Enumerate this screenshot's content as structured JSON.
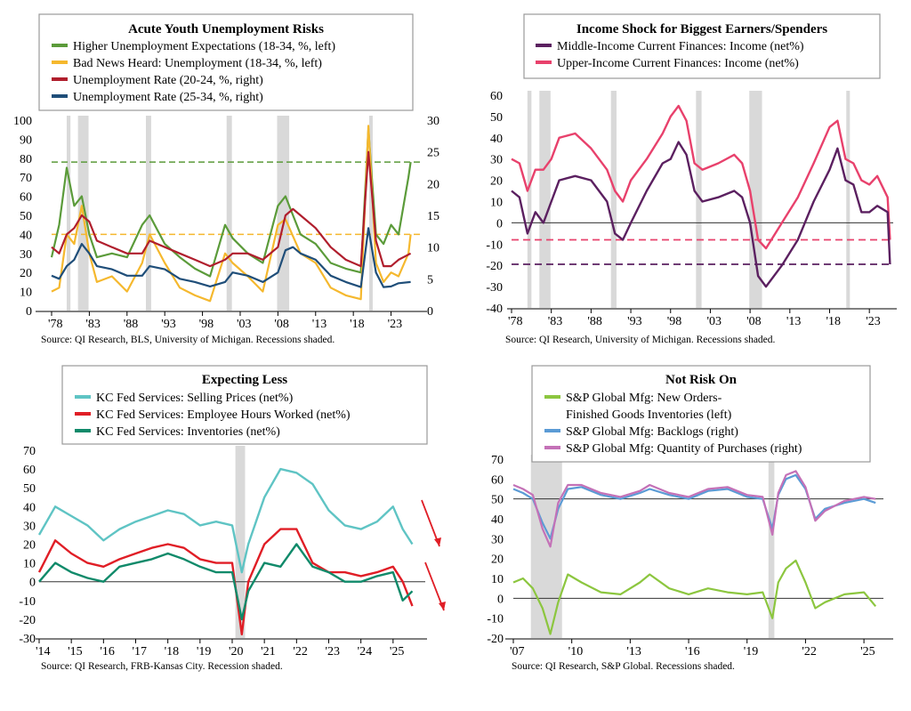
{
  "chart_data": [
    {
      "type": "line",
      "title": "Acute Youth Unemployment Risks",
      "source": "Source: QI Research, BLS, University of Michigan. Recessions shaded.",
      "x_ticks": [
        "'78",
        "'83",
        "'88",
        "'93",
        "'98",
        "'03",
        "'08",
        "'13",
        "'18",
        "'23"
      ],
      "xlim": [
        1978,
        2026
      ],
      "y_left_ticks": [
        0,
        10,
        20,
        30,
        40,
        50,
        60,
        70,
        80,
        90,
        100
      ],
      "y_left_lim": [
        0,
        100
      ],
      "y_right_ticks": [
        0,
        5,
        10,
        15,
        20,
        25,
        30
      ],
      "y_right_lim": [
        0,
        30
      ],
      "recessions": [
        [
          1980.0,
          1980.5
        ],
        [
          1981.5,
          1982.9
        ],
        [
          1990.5,
          1991.2
        ],
        [
          2001.2,
          2001.9
        ],
        [
          2007.9,
          2009.5
        ],
        [
          2020.1,
          2020.4
        ]
      ],
      "reference_lines": [
        {
          "axis": "left",
          "y": 78,
          "color": "#5b9b3a"
        },
        {
          "axis": "left",
          "y": 40,
          "color": "#f5b82e"
        }
      ],
      "series": [
        {
          "name": "Higher Unemployment Expectations (18-34, %, left)",
          "axis": "left",
          "color": "#5b9b3a",
          "x": [
            1978,
            1979,
            1980,
            1981,
            1982,
            1983,
            1984,
            1986,
            1988,
            1990,
            1991,
            1993,
            1995,
            1997,
            1999,
            2001,
            2002,
            2004,
            2006,
            2008,
            2009,
            2011,
            2013,
            2015,
            2017,
            2019,
            2020,
            2021,
            2022,
            2023,
            2024,
            2025.3,
            2025.6
          ],
          "y": [
            28,
            45,
            75,
            55,
            60,
            40,
            28,
            30,
            28,
            45,
            50,
            35,
            28,
            22,
            18,
            45,
            38,
            30,
            25,
            55,
            60,
            40,
            35,
            25,
            22,
            20,
            95,
            40,
            35,
            45,
            40,
            70,
            78
          ]
        },
        {
          "name": "Bad News Heard: Unemployment (18-34, %, left)",
          "axis": "left",
          "color": "#f5b82e",
          "x": [
            1978,
            1979,
            1980,
            1981,
            1982,
            1983,
            1984,
            1986,
            1988,
            1990,
            1991,
            1993,
            1995,
            1997,
            1999,
            2001,
            2002,
            2004,
            2006,
            2008,
            2009,
            2011,
            2013,
            2015,
            2017,
            2019,
            2020,
            2021,
            2022,
            2023,
            2024,
            2025.3,
            2025.6
          ],
          "y": [
            10,
            12,
            40,
            35,
            55,
            30,
            15,
            18,
            10,
            25,
            40,
            25,
            12,
            8,
            5,
            30,
            25,
            18,
            10,
            45,
            48,
            30,
            25,
            12,
            8,
            6,
            97,
            25,
            15,
            20,
            18,
            30,
            40
          ]
        },
        {
          "name": "Unemployment Rate (20-24, %, right)",
          "axis": "right",
          "color": "#b01e2d",
          "x": [
            1978,
            1979,
            1980,
            1981,
            1982,
            1983,
            1984,
            1986,
            1988,
            1990,
            1991,
            1993,
            1995,
            1997,
            1999,
            2001,
            2002,
            2004,
            2006,
            2008,
            2009,
            2010,
            2011,
            2013,
            2015,
            2017,
            2019,
            2020,
            2021,
            2022,
            2023,
            2024,
            2025.6
          ],
          "y": [
            10,
            9,
            12,
            13,
            15,
            14,
            11,
            10,
            9,
            9,
            11,
            10,
            9,
            8,
            7,
            8,
            9,
            9,
            8,
            10,
            15,
            16,
            15,
            13,
            10,
            8,
            7,
            25,
            11,
            7,
            7,
            8,
            9
          ]
        },
        {
          "name": "Unemployment Rate (25-34, %, right)",
          "axis": "right",
          "color": "#1f4e79",
          "x": [
            1978,
            1979,
            1980,
            1981,
            1982,
            1983,
            1984,
            1986,
            1988,
            1990,
            1991,
            1993,
            1995,
            1997,
            1999,
            2001,
            2002,
            2004,
            2006,
            2008,
            2009,
            2010,
            2011,
            2013,
            2015,
            2017,
            2019,
            2020,
            2021,
            2022,
            2023,
            2024,
            2025.6
          ],
          "y": [
            5.5,
            5,
            7,
            8,
            10.5,
            9,
            7,
            6.5,
            5.5,
            5.5,
            7,
            6.5,
            5,
            4.5,
            3.8,
            4.5,
            6,
            5.5,
            4.5,
            6,
            9.5,
            10,
            9,
            8,
            5.5,
            4.5,
            3.7,
            13,
            6,
            3.7,
            3.8,
            4.3,
            4.5
          ]
        }
      ]
    },
    {
      "type": "line",
      "title": "Income Shock for Biggest Earners/Spenders",
      "source": "Source: QI Research, University of Michigan. Recessions shaded.",
      "x_ticks": [
        "'78",
        "'83",
        "'88",
        "'93",
        "'98",
        "'03",
        "'08",
        "'13",
        "'18",
        "'23"
      ],
      "xlim": [
        1978,
        2026
      ],
      "y_ticks": [
        -40,
        -30,
        -20,
        -10,
        0,
        10,
        20,
        30,
        40,
        50,
        60
      ],
      "ylim": [
        -40,
        60
      ],
      "recessions": [
        [
          1980.0,
          1980.5
        ],
        [
          1981.5,
          1982.9
        ],
        [
          1990.5,
          1991.2
        ],
        [
          2001.2,
          2001.9
        ],
        [
          2007.9,
          2009.5
        ],
        [
          2020.1,
          2020.4
        ]
      ],
      "reference_lines": [
        {
          "y": -8,
          "color": "#e8416c"
        },
        {
          "y": -19.5,
          "color": "#5b2060"
        }
      ],
      "series": [
        {
          "name": "Middle-Income Current Finances: Income (net%)",
          "color": "#5b2060",
          "x": [
            1978,
            1979,
            1980,
            1981,
            1982,
            1983,
            1984,
            1986,
            1988,
            1990,
            1991,
            1992,
            1993,
            1995,
            1997,
            1998,
            1999,
            2000,
            2001,
            2002,
            2004,
            2006,
            2007,
            2008,
            2009,
            2010,
            2012,
            2014,
            2016,
            2018,
            2019,
            2020,
            2021,
            2022,
            2023,
            2024,
            2025.3,
            2025.6
          ],
          "y": [
            15,
            12,
            -5,
            5,
            0,
            10,
            20,
            22,
            20,
            10,
            -5,
            -8,
            0,
            15,
            28,
            30,
            38,
            32,
            15,
            10,
            12,
            15,
            12,
            0,
            -25,
            -30,
            -20,
            -8,
            10,
            25,
            35,
            20,
            18,
            5,
            5,
            8,
            5,
            -19.5
          ]
        },
        {
          "name": "Upper-Income Current Finances: Income (net%)",
          "color": "#e8416c",
          "x": [
            1978,
            1979,
            1980,
            1981,
            1982,
            1983,
            1984,
            1986,
            1988,
            1990,
            1991,
            1992,
            1993,
            1995,
            1997,
            1998,
            1999,
            2000,
            2001,
            2002,
            2004,
            2006,
            2007,
            2008,
            2009,
            2010,
            2012,
            2014,
            2016,
            2018,
            2019,
            2020,
            2021,
            2022,
            2023,
            2024,
            2025.3,
            2025.6
          ],
          "y": [
            30,
            28,
            15,
            25,
            25,
            30,
            40,
            42,
            35,
            25,
            15,
            10,
            20,
            30,
            42,
            50,
            55,
            48,
            28,
            25,
            28,
            32,
            28,
            15,
            -8,
            -12,
            0,
            12,
            28,
            45,
            48,
            30,
            28,
            20,
            18,
            22,
            12,
            -8
          ]
        }
      ]
    },
    {
      "type": "line",
      "title": "Expecting Less",
      "source": "Source: QI Research, FRB-Kansas City. Recession shaded.",
      "x_ticks": [
        "'14",
        "'15",
        "'16",
        "'17",
        "'18",
        "'19",
        "'20",
        "'21",
        "'22",
        "'23",
        "'24",
        "'25"
      ],
      "xlim": [
        2014,
        2026
      ],
      "y_ticks": [
        -30,
        -20,
        -10,
        0,
        10,
        20,
        30,
        40,
        50,
        60,
        70
      ],
      "ylim": [
        -30,
        70
      ],
      "recessions": [
        [
          2020.1,
          2020.4
        ]
      ],
      "series": [
        {
          "name": "KC Fed Services: Selling Prices (net%)",
          "color": "#5fc4c4",
          "x": [
            2014,
            2014.5,
            2015,
            2015.5,
            2016,
            2016.5,
            2017,
            2017.5,
            2018,
            2018.5,
            2019,
            2019.5,
            2020,
            2020.3,
            2020.5,
            2021,
            2021.5,
            2022,
            2022.5,
            2023,
            2023.5,
            2024,
            2024.5,
            2025,
            2025.3,
            2025.6
          ],
          "y": [
            25,
            40,
            35,
            30,
            22,
            28,
            32,
            35,
            38,
            36,
            30,
            32,
            30,
            5,
            20,
            45,
            60,
            58,
            52,
            38,
            30,
            28,
            32,
            40,
            28,
            20
          ]
        },
        {
          "name": "KC Fed Services: Employee Hours Worked (net%)",
          "color": "#e01e26",
          "x": [
            2014,
            2014.5,
            2015,
            2015.5,
            2016,
            2016.5,
            2017,
            2017.5,
            2018,
            2018.5,
            2019,
            2019.5,
            2020,
            2020.3,
            2020.5,
            2021,
            2021.5,
            2022,
            2022.5,
            2023,
            2023.5,
            2024,
            2024.5,
            2025,
            2025.3,
            2025.6
          ],
          "y": [
            5,
            22,
            15,
            10,
            8,
            12,
            15,
            18,
            20,
            18,
            12,
            10,
            10,
            -28,
            0,
            20,
            28,
            28,
            10,
            5,
            5,
            3,
            5,
            8,
            0,
            -13
          ]
        },
        {
          "name": "KC Fed Services: Inventories (net%)",
          "color": "#108a6a",
          "x": [
            2014,
            2014.5,
            2015,
            2015.5,
            2016,
            2016.5,
            2017,
            2017.5,
            2018,
            2018.5,
            2019,
            2019.5,
            2020,
            2020.3,
            2020.5,
            2021,
            2021.5,
            2022,
            2022.5,
            2023,
            2023.5,
            2024,
            2024.5,
            2025,
            2025.3,
            2025.6
          ],
          "y": [
            0,
            10,
            5,
            2,
            0,
            8,
            10,
            12,
            15,
            12,
            8,
            5,
            5,
            -20,
            -5,
            10,
            8,
            20,
            8,
            5,
            0,
            0,
            3,
            5,
            -10,
            -5
          ]
        }
      ]
    },
    {
      "type": "line",
      "title": "Not Risk On",
      "source": "Source: QI Research, S&P Global. Recessions shaded.",
      "x_ticks": [
        "'07",
        "'10",
        "'13",
        "'16",
        "'19",
        "'22",
        "'25"
      ],
      "xlim": [
        2007,
        2026
      ],
      "y_ticks": [
        -20,
        -10,
        0,
        10,
        20,
        30,
        40,
        50,
        60,
        70
      ],
      "ylim": [
        -20,
        70
      ],
      "recessions": [
        [
          2007.9,
          2009.5
        ],
        [
          2020.1,
          2020.4
        ]
      ],
      "series": [
        {
          "name": "S&P Global Mfg: New Orders-",
          "name_line2": "Finished Goods Inventories (left)",
          "color": "#8cc63f",
          "x": [
            2007,
            2007.5,
            2008,
            2008.5,
            2008.9,
            2009.3,
            2009.8,
            2010.5,
            2011.5,
            2012.5,
            2013.5,
            2014,
            2015,
            2016,
            2017,
            2018,
            2019,
            2019.8,
            2020.3,
            2020.6,
            2021,
            2021.5,
            2022,
            2022.5,
            2023,
            2024,
            2025,
            2025.6
          ],
          "y": [
            8,
            10,
            5,
            -5,
            -18,
            -2,
            12,
            8,
            3,
            2,
            8,
            12,
            5,
            2,
            5,
            3,
            2,
            3,
            -10,
            8,
            15,
            19,
            8,
            -5,
            -2,
            2,
            3,
            -4
          ]
        },
        {
          "name": "S&P Global Mfg: Backlogs (right)",
          "color": "#5b9bd5",
          "x": [
            2007,
            2007.5,
            2008,
            2008.5,
            2008.9,
            2009.3,
            2009.8,
            2010.5,
            2011.5,
            2012.5,
            2013.5,
            2014,
            2015,
            2016,
            2017,
            2018,
            2019,
            2019.8,
            2020.3,
            2020.6,
            2021,
            2021.5,
            2022,
            2022.5,
            2023,
            2024,
            2025,
            2025.6
          ],
          "y": [
            55,
            53,
            50,
            38,
            30,
            45,
            55,
            56,
            52,
            50,
            53,
            55,
            52,
            50,
            54,
            55,
            51,
            50,
            35,
            52,
            60,
            62,
            55,
            40,
            45,
            48,
            50,
            48
          ]
        },
        {
          "name": "S&P Global Mfg: Quantity of Purchases (right)",
          "color": "#c471b7",
          "x": [
            2007,
            2007.5,
            2008,
            2008.5,
            2008.9,
            2009.3,
            2009.8,
            2010.5,
            2011.5,
            2012.5,
            2013.5,
            2014,
            2015,
            2016,
            2017,
            2018,
            2019,
            2019.8,
            2020.3,
            2020.6,
            2021,
            2021.5,
            2022,
            2022.5,
            2023,
            2024,
            2025,
            2025.6
          ],
          "y": [
            57,
            55,
            52,
            35,
            26,
            48,
            57,
            57,
            53,
            51,
            54,
            57,
            53,
            51,
            55,
            56,
            52,
            51,
            32,
            53,
            62,
            64,
            56,
            39,
            44,
            49,
            51,
            50
          ]
        }
      ]
    }
  ]
}
